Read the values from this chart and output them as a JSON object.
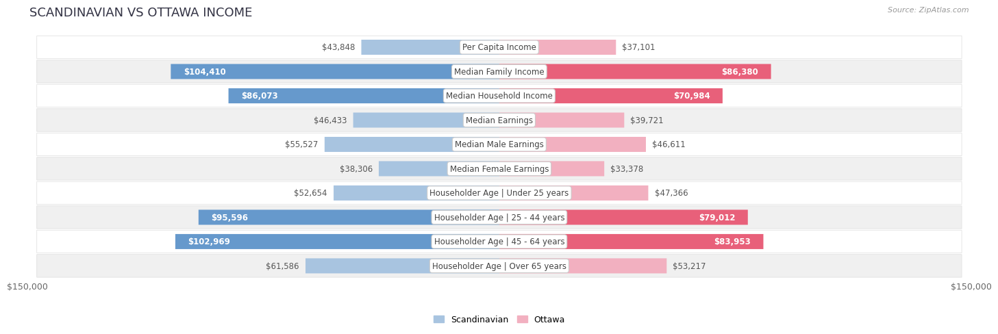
{
  "title": "SCANDINAVIAN VS OTTAWA INCOME",
  "source": "Source: ZipAtlas.com",
  "categories": [
    "Per Capita Income",
    "Median Family Income",
    "Median Household Income",
    "Median Earnings",
    "Median Male Earnings",
    "Median Female Earnings",
    "Householder Age | Under 25 years",
    "Householder Age | 25 - 44 years",
    "Householder Age | 45 - 64 years",
    "Householder Age | Over 65 years"
  ],
  "scandinavian_values": [
    43848,
    104410,
    86073,
    46433,
    55527,
    38306,
    52654,
    95596,
    102969,
    61586
  ],
  "ottawa_values": [
    37101,
    86380,
    70984,
    39721,
    46611,
    33378,
    47366,
    79012,
    83953,
    53217
  ],
  "scandinavian_labels": [
    "$43,848",
    "$104,410",
    "$86,073",
    "$46,433",
    "$55,527",
    "$38,306",
    "$52,654",
    "$95,596",
    "$102,969",
    "$61,586"
  ],
  "ottawa_labels": [
    "$37,101",
    "$86,380",
    "$70,984",
    "$39,721",
    "$46,611",
    "$33,378",
    "$47,366",
    "$79,012",
    "$83,953",
    "$53,217"
  ],
  "max_val": 150000,
  "blue_light": "#A8C4E0",
  "blue_dark": "#6699CC",
  "pink_light": "#F2B0C0",
  "pink_dark": "#E8607A",
  "row_bg_light": "#FFFFFF",
  "row_bg_dark": "#F0F0F0",
  "overall_bg": "#FFFFFF",
  "title_color": "#333344",
  "source_color": "#999999",
  "label_color": "#555555",
  "white_label_color": "#FFFFFF",
  "title_fontsize": 13,
  "bar_label_fontsize": 8.5,
  "cat_label_fontsize": 8.5,
  "axis_fontsize": 9,
  "legend_scandinavian": "Scandinavian",
  "legend_ottawa": "Ottawa",
  "white_text_threshold": 65000
}
